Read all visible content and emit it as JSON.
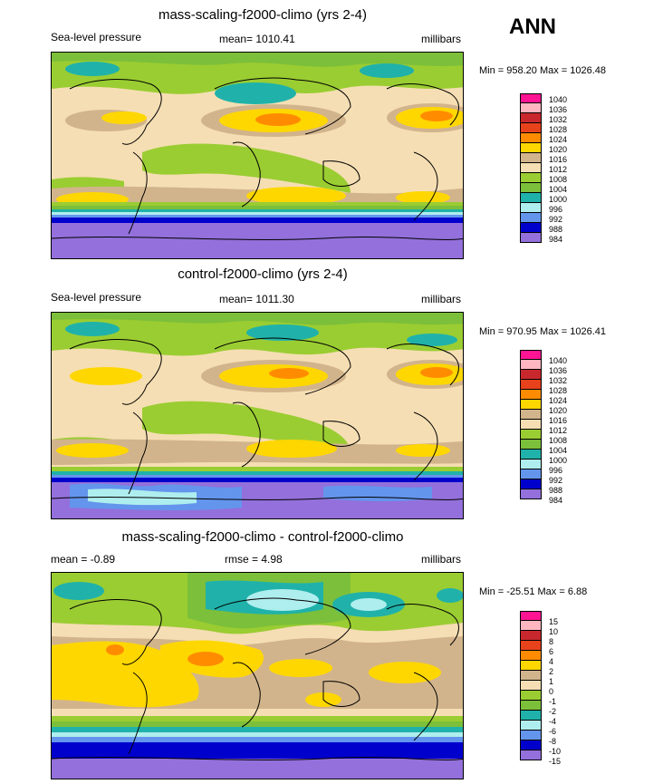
{
  "season": "ANN",
  "panels": [
    {
      "title": "mass-scaling-f2000-climo (yrs 2-4)",
      "left_label": "Sea-level pressure",
      "center_label": "mean= 1010.41",
      "units": "millibars",
      "minmax": "Min = 958.20 Max = 1026.48",
      "legend": [
        "1040",
        "1036",
        "1032",
        "1028",
        "1024",
        "1020",
        "1016",
        "1012",
        "1008",
        "1004",
        "1000",
        "996",
        "992",
        "988",
        "984"
      ]
    },
    {
      "title": "control-f2000-climo (yrs 2-4)",
      "left_label": "Sea-level pressure",
      "center_label": "mean= 1011.30",
      "units": "millibars",
      "minmax": "Min = 970.95 Max = 1026.41",
      "legend": [
        "1040",
        "1036",
        "1032",
        "1028",
        "1024",
        "1020",
        "1016",
        "1012",
        "1008",
        "1004",
        "1000",
        "996",
        "992",
        "988",
        "984"
      ]
    },
    {
      "title": "mass-scaling-f2000-climo - control-f2000-climo",
      "left_label": "mean =  -0.89",
      "center_label": "rmse =   4.98",
      "units": "millibars",
      "minmax": "Min = -25.51 Max =   6.88",
      "legend": [
        "15",
        "10",
        "8",
        "6",
        "4",
        "2",
        "1",
        "0",
        "-1",
        "-2",
        "-4",
        "-6",
        "-8",
        "-10",
        "-15"
      ]
    }
  ],
  "colors": {
    "palette": [
      "#ff1493",
      "#ffb6c1",
      "#c8282d",
      "#e8421c",
      "#ff8c00",
      "#ffd700",
      "#d2b48c",
      "#f5deb3",
      "#9acd32",
      "#7cbf3a",
      "#20b2aa",
      "#afeeee",
      "#6495ed",
      "#0000cd",
      "#9370db"
    ]
  }
}
